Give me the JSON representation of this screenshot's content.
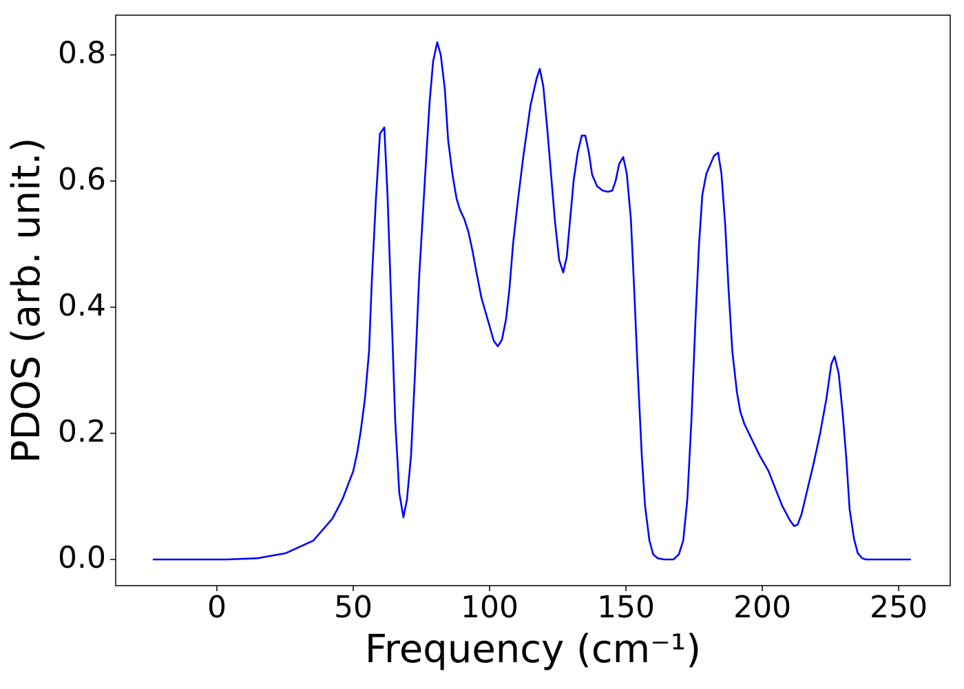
{
  "chart_data": {
    "type": "line",
    "xlabel": "Frequency (cm⁻¹)",
    "ylabel": "PDOS (arb. unit.)",
    "x": [
      -23.5,
      0,
      3.8,
      15,
      25.3,
      35.4,
      42.4,
      46,
      50,
      51.5,
      52.8,
      54.3,
      55.8,
      56.8,
      58.3,
      59.8,
      61.4,
      62.6,
      63.9,
      65.4,
      66.9,
      68.4,
      69.7,
      71.2,
      72.7,
      74.2,
      76.8,
      78,
      79.3,
      80.8,
      82.1,
      83.6,
      84.8,
      86.4,
      87.9,
      89.1,
      90.7,
      92.2,
      93.7,
      95.2,
      97,
      100,
      101.5,
      103,
      104.5,
      106,
      107.3,
      108.6,
      110.4,
      112.4,
      115,
      117.2,
      118.4,
      119.7,
      121.2,
      124,
      125.5,
      127,
      128.3,
      130.8,
      132.3,
      133.8,
      135.1,
      136.4,
      137.6,
      139.4,
      141.4,
      143.4,
      145,
      146.2,
      147.5,
      149,
      150.3,
      151.8,
      153,
      154.3,
      155.8,
      157,
      158.6,
      160,
      161.6,
      164,
      167.4,
      169.4,
      171,
      172.5,
      174,
      175.5,
      176.8,
      178,
      179.5,
      182.3,
      183.8,
      185,
      186.4,
      187.6,
      189,
      190.7,
      191.9,
      193.4,
      196.2,
      199,
      202.3,
      205,
      207.3,
      210,
      211.6,
      212.9,
      214.4,
      216.2,
      218.7,
      221.2,
      223.5,
      225.3,
      226.5,
      228,
      229.5,
      230.8,
      232,
      233.6,
      235,
      236.6,
      238,
      254.5
    ],
    "series": [
      {
        "color": "#0000ff",
        "values": [
          0,
          0,
          0,
          0.002,
          0.01,
          0.03,
          0.065,
          0.095,
          0.14,
          0.17,
          0.205,
          0.255,
          0.33,
          0.44,
          0.57,
          0.675,
          0.685,
          0.575,
          0.41,
          0.22,
          0.105,
          0.067,
          0.095,
          0.165,
          0.3,
          0.45,
          0.64,
          0.725,
          0.79,
          0.82,
          0.8,
          0.745,
          0.665,
          0.61,
          0.572,
          0.555,
          0.54,
          0.52,
          0.49,
          0.455,
          0.415,
          0.37,
          0.347,
          0.338,
          0.348,
          0.38,
          0.43,
          0.5,
          0.57,
          0.64,
          0.72,
          0.762,
          0.778,
          0.75,
          0.68,
          0.535,
          0.475,
          0.455,
          0.48,
          0.6,
          0.645,
          0.672,
          0.672,
          0.645,
          0.61,
          0.592,
          0.585,
          0.583,
          0.585,
          0.6,
          0.627,
          0.638,
          0.612,
          0.54,
          0.43,
          0.3,
          0.165,
          0.085,
          0.03,
          0.008,
          0.002,
          0,
          0,
          0.008,
          0.03,
          0.095,
          0.22,
          0.38,
          0.5,
          0.578,
          0.612,
          0.64,
          0.645,
          0.612,
          0.53,
          0.43,
          0.33,
          0.265,
          0.235,
          0.215,
          0.19,
          0.165,
          0.14,
          0.11,
          0.085,
          0.063,
          0.053,
          0.055,
          0.072,
          0.105,
          0.15,
          0.2,
          0.255,
          0.31,
          0.322,
          0.295,
          0.23,
          0.16,
          0.08,
          0.033,
          0.01,
          0.002,
          0,
          0
        ]
      }
    ],
    "xlim": [
      -37.1,
      268.9
    ],
    "xticks": [
      0,
      50,
      100,
      150,
      200,
      250
    ],
    "ylim": [
      -0.0415,
      0.863
    ],
    "yticks": [
      {
        "value": 0,
        "label": "0.0"
      },
      0.2,
      0.4,
      0.6,
      0.8
    ]
  }
}
